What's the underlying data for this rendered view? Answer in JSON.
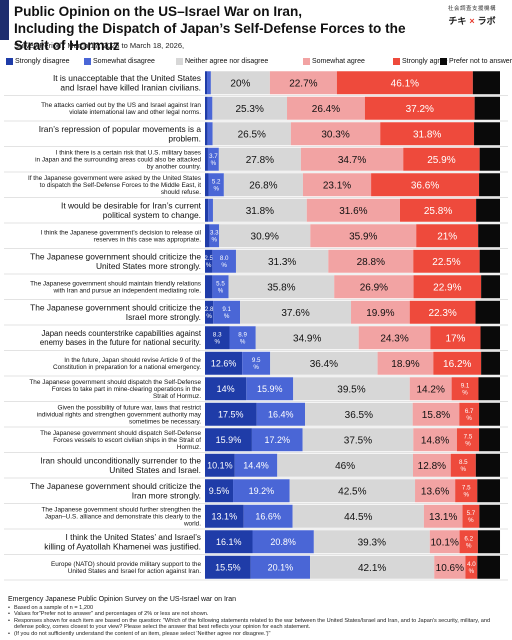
{
  "header": {
    "title_line1": "Public Opinion on the US–Israel War on Iran,",
    "title_line2": "Including the Dispatch of Japan’s Self-Defense Forces to the Strait of Hormuz",
    "survey_period": "Survey Period : March 17, 2026 to March 18, 2026,",
    "logo_top": "社会調査支援機構",
    "logo_left": "チキ",
    "logo_right": "ラボ"
  },
  "colors": {
    "strongly_disagree": "#1f3ca8",
    "somewhat_disagree": "#4a66d6",
    "neither": "#d7d7d7",
    "somewhat_agree": "#f2a3a3",
    "strongly_agree": "#ee4a3c",
    "prefer_not": "#0a0a0a"
  },
  "chart_data": {
    "type": "bar",
    "orientation": "horizontal-stacked-100",
    "legend_position": "top",
    "categories": [
      "It is unacceptable that the United States and Israel have killed Iranian civilians.",
      "The attacks carried out by the US and Israel against Iran violate international law and other legal norms.",
      "Iran’s repression of popular movements is a problem.",
      "I think there is a certain risk that U.S. military bases in Japan and the surrounding areas could also be attacked by another country.",
      "If the Japanese government were asked by the United States to dispatch the Self-Defense Forces to the Middle East, it should refuse.",
      "It would be desirable for Iran’s current political system to change.",
      "I think the Japanese government’s decision to release oil reserves in this case was appropriate.",
      "The Japanese government should criticize the United States more strongly.",
      "The Japanese government should maintain friendly relations with Iran and pursue an independent mediating role.",
      "The Japanese government should criticize the Israel more strongly.",
      "Japan needs counterstrike capabilities against enemy bases in the future for national security.",
      "In the future, Japan should revise Article 9 of the Constitution in preparation for a national emergency.",
      "The Japanese government should dispatch the Self-Defense Forces to take part in mine-clearing operations in the Strait of Hormuz.",
      "Given the possibility of future war, laws that restrict individual rights and strengthen government authority may sometimes be necessary.",
      "The Japanese government should dispatch Self-Defense Forces vessels to escort civilian ships in the Strait of Hormuz.",
      "Iran should unconditionally surrender to the United States and Israel.",
      "The Japanese government should criticize the Iran more strongly.",
      "The Japanese government should further strengthen the Japan–U.S. alliance and demonstrate this clearly to the world.",
      "I think the United States’ and Israel’s killing of Ayatollah Khamenei was justified.",
      "Europe (NATO) should provide military support to the United States and Israel for action against Iran."
    ],
    "series": [
      {
        "name": "Strongly disagree",
        "values": [
          0.8,
          0.9,
          0.9,
          1.0,
          1.2,
          1.1,
          1.5,
          2.5,
          2.5,
          2.8,
          8.3,
          12.6,
          14.0,
          17.5,
          15.9,
          10.1,
          9.5,
          13.1,
          16.1,
          15.5
        ]
      },
      {
        "name": "Somewhat disagree",
        "values": [
          1.2,
          1.6,
          1.7,
          3.7,
          5.2,
          1.6,
          3.3,
          8.0,
          5.5,
          9.1,
          8.9,
          9.5,
          15.9,
          16.4,
          17.2,
          14.4,
          19.2,
          16.6,
          20.8,
          20.1
        ]
      },
      {
        "name": "Neither agree nor disagree",
        "values": [
          20.0,
          25.3,
          26.5,
          27.8,
          26.8,
          31.8,
          30.9,
          31.3,
          35.8,
          37.6,
          34.9,
          36.4,
          39.5,
          36.5,
          37.5,
          46.0,
          42.5,
          44.5,
          39.3,
          42.1
        ]
      },
      {
        "name": "Somewhat agree",
        "values": [
          22.7,
          26.4,
          30.3,
          34.7,
          23.1,
          31.6,
          35.9,
          28.8,
          26.9,
          19.9,
          24.3,
          18.9,
          14.2,
          15.8,
          14.8,
          12.8,
          13.6,
          13.1,
          10.1,
          10.6
        ]
      },
      {
        "name": "Strongly agree",
        "values": [
          46.1,
          37.2,
          31.8,
          25.9,
          36.6,
          25.8,
          21.0,
          22.5,
          22.9,
          22.3,
          17.0,
          16.2,
          9.1,
          6.7,
          7.5,
          8.5,
          7.5,
          5.7,
          6.2,
          4.0
        ]
      },
      {
        "name": "Prefer not to answer",
        "values": [
          9.2,
          8.6,
          8.8,
          6.9,
          7.1,
          8.1,
          7.4,
          6.9,
          6.4,
          8.3,
          6.6,
          6.4,
          7.3,
          7.1,
          7.1,
          8.2,
          7.7,
          7.0,
          7.5,
          7.7
        ]
      }
    ],
    "labels": [
      [
        "",
        "",
        "20%",
        "22.7%",
        "46.1%",
        ""
      ],
      [
        "",
        "",
        "25.3%",
        "26.4%",
        "37.2%",
        ""
      ],
      [
        "",
        "",
        "26.5%",
        "30.3%",
        "31.8%",
        ""
      ],
      [
        "",
        "3.7\n%",
        "27.8%",
        "34.7%",
        "25.9%",
        ""
      ],
      [
        "",
        "5.2\n%",
        "26.8%",
        "23.1%",
        "36.6%",
        ""
      ],
      [
        "",
        "",
        "31.8%",
        "31.6%",
        "25.8%",
        ""
      ],
      [
        "",
        "3.3\n%",
        "30.9%",
        "35.9%",
        "21%",
        ""
      ],
      [
        "2.5\n%",
        "8.0\n%",
        "31.3%",
        "28.8%",
        "22.5%",
        ""
      ],
      [
        "",
        "5.5\n%",
        "35.8%",
        "26.9%",
        "22.9%",
        ""
      ],
      [
        "2.8\n%",
        "9.1\n%",
        "37.6%",
        "19.9%",
        "22.3%",
        ""
      ],
      [
        "8.3\n%",
        "8.9\n%",
        "34.9%",
        "24.3%",
        "17%",
        ""
      ],
      [
        "12.6%",
        "9.5\n%",
        "36.4%",
        "18.9%",
        "16.2%",
        ""
      ],
      [
        "14%",
        "15.9%",
        "39.5%",
        "14.2%",
        "9.1\n%",
        ""
      ],
      [
        "17.5%",
        "16.4%",
        "36.5%",
        "15.8%",
        "6.7\n%",
        ""
      ],
      [
        "15.9%",
        "17.2%",
        "37.5%",
        "14.8%",
        "7.5\n%",
        ""
      ],
      [
        "10.1%",
        "14.4%",
        "46%",
        "12.8%",
        "8.5\n%",
        ""
      ],
      [
        "9.5%",
        "19.2%",
        "42.5%",
        "13.6%",
        "7.5\n%",
        ""
      ],
      [
        "13.1%",
        "16.6%",
        "44.5%",
        "13.1%",
        "5.7\n%",
        ""
      ],
      [
        "16.1%",
        "20.8%",
        "39.3%",
        "10.1%",
        "6.2\n%",
        ""
      ],
      [
        "15.5%",
        "20.1%",
        "42.1%",
        "10.6%",
        "4.0\n%",
        ""
      ]
    ],
    "xlim": [
      0,
      100
    ],
    "grid": false
  },
  "footer": {
    "heading": "Emergency Japanese Public Opinion Survey on the US-Israel war on Iran",
    "notes": [
      "Based on a sample of n = 1,200",
      "Values for\"Prefer not to answer\" and percentages of 2% or less are not shown.",
      "Responses shown for each item are based on the question: \"Which of the following statements related to the war between the United States/Israel and Iran, and to Japan's security, military, and defense policy, comes closest to your view? Please select the answer that best reflects your opinion for each statement.",
      "(If you do not sufficiently understand the content of an item, please select 'Neither agree nor disagree.')\""
    ]
  }
}
